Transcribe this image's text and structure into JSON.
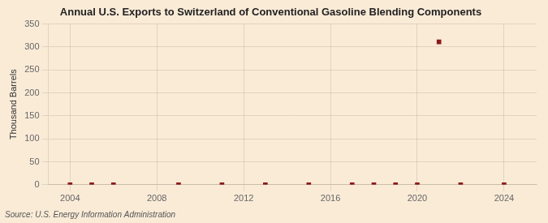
{
  "chart_data": {
    "type": "scatter",
    "title": "Annual U.S. Exports to Switzerland of Conventional Gasoline Blending Components",
    "ylabel": "Thousand Barrels",
    "source": "Source: U.S. Energy Information Administration",
    "x": [
      2004,
      2005,
      2006,
      2009,
      2011,
      2013,
      2015,
      2017,
      2018,
      2019,
      2020,
      2021,
      2022,
      2024
    ],
    "values": [
      0,
      0,
      0,
      0,
      0,
      0,
      0,
      0,
      0,
      0,
      0,
      311,
      0,
      0
    ],
    "color": "#8b1a1a",
    "marker": "square",
    "xlim": [
      2003.0,
      2025.5
    ],
    "ylim": [
      0,
      350
    ],
    "xticks": [
      2004,
      2008,
      2012,
      2016,
      2020,
      2024
    ],
    "yticks": [
      0,
      50,
      100,
      150,
      200,
      250,
      300,
      350
    ],
    "grid": true
  }
}
